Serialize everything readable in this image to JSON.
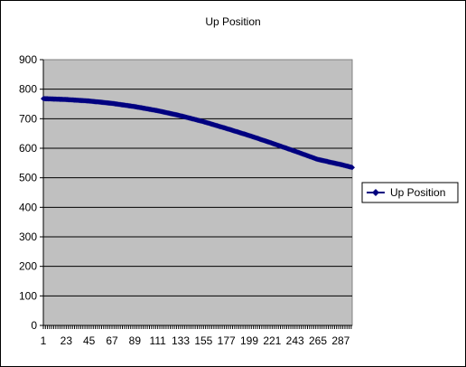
{
  "chart_data": {
    "type": "line",
    "title": "Up Position",
    "xlabel": "",
    "ylabel": "",
    "x_range": [
      1,
      298
    ],
    "x_tick_labels": [
      "1",
      "23",
      "45",
      "67",
      "89",
      "111",
      "133",
      "155",
      "177",
      "199",
      "221",
      "243",
      "265",
      "287"
    ],
    "ylim": [
      0,
      900
    ],
    "y_ticks": [
      0,
      100,
      200,
      300,
      400,
      500,
      600,
      700,
      800,
      900
    ],
    "grid": {
      "horizontal": true,
      "vertical": false
    },
    "plot_background": "#c0c0c0",
    "legend_position": "right",
    "series": [
      {
        "name": "Up Position",
        "color": "#000080",
        "marker": "diamond",
        "x": [
          1,
          23,
          45,
          67,
          89,
          111,
          133,
          155,
          177,
          199,
          221,
          243,
          265,
          287,
          298
        ],
        "y": [
          768,
          765,
          760,
          752,
          741,
          727,
          710,
          690,
          667,
          643,
          617,
          590,
          562,
          545,
          535
        ]
      }
    ]
  }
}
